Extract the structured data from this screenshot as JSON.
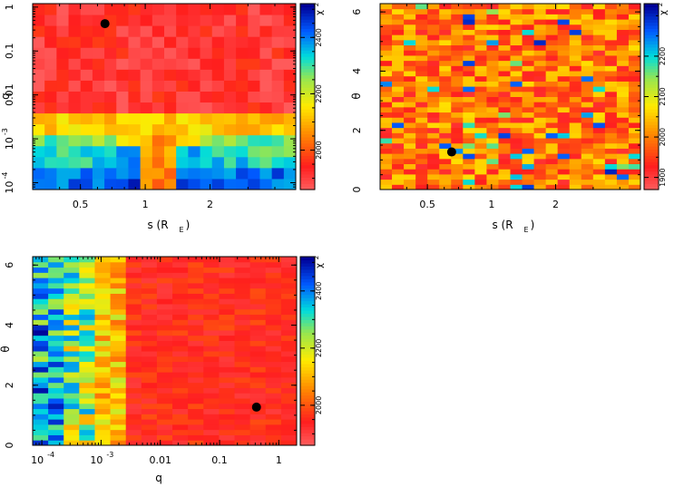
{
  "chart_data": [
    {
      "id": "p1",
      "type": "heatmap",
      "xlabel": "s (R",
      "xlabel_sub": "E",
      "xlabel_close": ")",
      "ylabel": "q",
      "x_scale": "log",
      "y_scale": "log",
      "xlim": [
        0.3,
        5
      ],
      "ylim": [
        7e-05,
        1.2
      ],
      "x_ticks": [
        {
          "value": 0.5,
          "label": "0.5"
        },
        {
          "value": 1,
          "label": "1"
        },
        {
          "value": 2,
          "label": "2"
        }
      ],
      "y_ticks": [
        {
          "value": 0.0001,
          "label": "10",
          "sup": "-4"
        },
        {
          "value": 0.001,
          "label": "10",
          "sup": "-3"
        },
        {
          "value": 0.01,
          "label": "0.01"
        },
        {
          "value": 0.1,
          "label": "0.1"
        },
        {
          "value": 1,
          "label": "1"
        }
      ],
      "grid_cols": 22,
      "grid_rows": 17,
      "colorbar": {
        "label": "χ",
        "sup": "2",
        "min": 1860,
        "max": 2520,
        "ticks": [
          {
            "value": 2000,
            "label": "2000"
          },
          {
            "value": 2200,
            "label": "2200"
          },
          {
            "value": 2400,
            "label": "2400"
          }
        ]
      },
      "best_fit": {
        "s": 0.65,
        "q": 0.42
      }
    },
    {
      "id": "p2",
      "type": "heatmap",
      "xlabel": "s (R",
      "xlabel_sub": "E",
      "xlabel_close": ")",
      "ylabel": "θ",
      "x_scale": "log",
      "y_scale": "linear",
      "xlim": [
        0.3,
        5
      ],
      "ylim": [
        0,
        6.28
      ],
      "x_ticks": [
        {
          "value": 0.5,
          "label": "0.5"
        },
        {
          "value": 1,
          "label": "1"
        },
        {
          "value": 2,
          "label": "2"
        }
      ],
      "y_ticks": [
        {
          "value": 0,
          "label": "0"
        },
        {
          "value": 2,
          "label": "2"
        },
        {
          "value": 4,
          "label": "4"
        },
        {
          "value": 6,
          "label": "6"
        }
      ],
      "grid_cols": 22,
      "grid_rows": 36,
      "colorbar": {
        "label": "χ",
        "sup": "2",
        "min": 1870,
        "max": 2330,
        "ticks": [
          {
            "value": 1900,
            "label": "1900"
          },
          {
            "value": 2000,
            "label": "2000"
          },
          {
            "value": 2100,
            "label": "2100"
          },
          {
            "value": 2200,
            "label": "2200"
          }
        ]
      },
      "best_fit": {
        "s": 0.65,
        "theta": 1.27
      }
    },
    {
      "id": "p3",
      "type": "heatmap",
      "xlabel": "q",
      "ylabel": "θ",
      "x_scale": "log",
      "y_scale": "linear",
      "xlim": [
        7e-05,
        2
      ],
      "ylim": [
        0,
        6.28
      ],
      "x_ticks": [
        {
          "value": 0.0001,
          "label": "10",
          "sup": "-4"
        },
        {
          "value": 0.001,
          "label": "10",
          "sup": "-3"
        },
        {
          "value": 0.01,
          "label": "0.01"
        },
        {
          "value": 0.1,
          "label": "0.1"
        },
        {
          "value": 1,
          "label": "1"
        }
      ],
      "y_ticks": [
        {
          "value": 0,
          "label": "0"
        },
        {
          "value": 2,
          "label": "2"
        },
        {
          "value": 4,
          "label": "4"
        },
        {
          "value": 6,
          "label": "6"
        }
      ],
      "grid_cols": 17,
      "grid_rows": 36,
      "colorbar": {
        "label": "χ",
        "sup": "2",
        "min": 1860,
        "max": 2520,
        "ticks": [
          {
            "value": 2000,
            "label": "2000"
          },
          {
            "value": 2200,
            "label": "2200"
          },
          {
            "value": 2400,
            "label": "2400"
          }
        ]
      },
      "best_fit": {
        "q": 0.42,
        "theta": 1.27
      }
    }
  ]
}
